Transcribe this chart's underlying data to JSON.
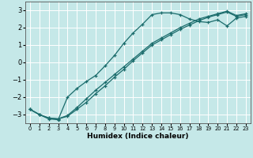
{
  "xlabel": "Humidex (Indice chaleur)",
  "ylabel": "",
  "xlim": [
    -0.5,
    23.5
  ],
  "ylim": [
    -3.5,
    3.5
  ],
  "yticks": [
    -3,
    -2,
    -1,
    0,
    1,
    2,
    3
  ],
  "xticks": [
    0,
    1,
    2,
    3,
    4,
    5,
    6,
    7,
    8,
    9,
    10,
    11,
    12,
    13,
    14,
    15,
    16,
    17,
    18,
    19,
    20,
    21,
    22,
    23
  ],
  "bg_color": "#c5e8e8",
  "grid_color": "#ffffff",
  "line_color": "#1a6b6b",
  "line1_x": [
    0,
    1,
    2,
    3,
    4,
    5,
    6,
    7,
    8,
    9,
    10,
    11,
    12,
    13,
    14,
    15,
    16,
    17,
    18,
    19,
    20,
    21,
    22,
    23
  ],
  "line1_y": [
    -2.7,
    -3.0,
    -3.25,
    -3.3,
    -2.0,
    -1.5,
    -1.1,
    -0.75,
    -0.2,
    0.4,
    1.1,
    1.7,
    2.2,
    2.75,
    2.85,
    2.85,
    2.75,
    2.5,
    2.35,
    2.3,
    2.45,
    2.1,
    2.55,
    2.65
  ],
  "line2_x": [
    0,
    1,
    2,
    3,
    4,
    5,
    6,
    7,
    8,
    9,
    10,
    11,
    12,
    13,
    14,
    15,
    16,
    17,
    18,
    19,
    20,
    21,
    22,
    23
  ],
  "line2_y": [
    -2.7,
    -3.0,
    -3.2,
    -3.25,
    -3.1,
    -2.7,
    -2.3,
    -1.8,
    -1.35,
    -0.85,
    -0.4,
    0.1,
    0.55,
    1.0,
    1.3,
    1.6,
    1.9,
    2.15,
    2.4,
    2.6,
    2.75,
    2.9,
    2.65,
    2.75
  ],
  "line3_x": [
    0,
    1,
    2,
    3,
    4,
    5,
    6,
    7,
    8,
    9,
    10,
    11,
    12,
    13,
    14,
    15,
    16,
    17,
    18,
    19,
    20,
    21,
    22,
    23
  ],
  "line3_y": [
    -2.7,
    -3.0,
    -3.2,
    -3.25,
    -3.05,
    -2.6,
    -2.1,
    -1.6,
    -1.15,
    -0.7,
    -0.25,
    0.2,
    0.65,
    1.1,
    1.4,
    1.7,
    2.0,
    2.25,
    2.5,
    2.65,
    2.8,
    2.95,
    2.7,
    2.8
  ]
}
